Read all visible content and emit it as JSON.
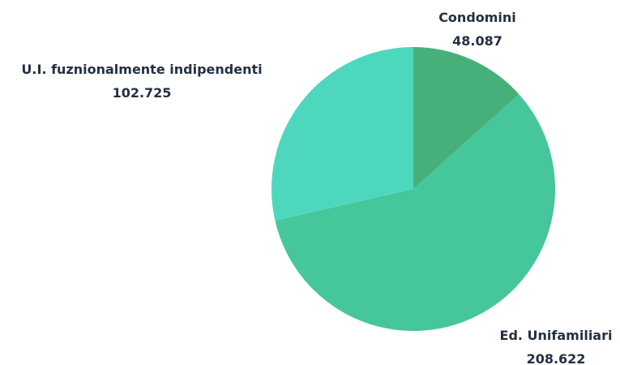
{
  "chart_data": {
    "type": "pie",
    "title": "",
    "slices": [
      {
        "label": "Condomini",
        "value": 48087,
        "value_label": "48.087",
        "color": "#47b07a"
      },
      {
        "label": "Ed. Unifamiliari",
        "value": 208622,
        "value_label": "208.622",
        "color": "#45c69b"
      },
      {
        "label": "U.I. fuznionalmente indipendenti",
        "value": 102725,
        "value_label": "102.725",
        "color": "#4dd8be"
      }
    ],
    "start_angle_deg": 0,
    "direction": "clockwise",
    "legend": "none"
  }
}
